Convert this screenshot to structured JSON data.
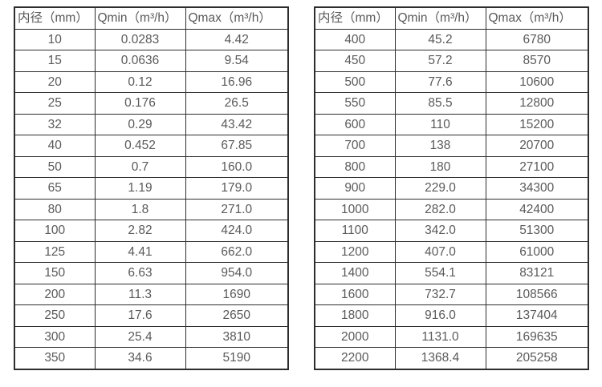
{
  "page": {
    "background_color": "#ffffff",
    "border_color": "#2d2d2d",
    "text_color": "#5a5a5a"
  },
  "tables": [
    {
      "name": "flow-range-table-small-diameters",
      "headers": [
        "内径（mm）",
        "Qmin（m³/h）",
        "Qmax（m³/h）"
      ],
      "rows": [
        [
          "10",
          "0.0283",
          "4.42"
        ],
        [
          "15",
          "0.0636",
          "9.54"
        ],
        [
          "20",
          "0.12",
          "16.96"
        ],
        [
          "25",
          "0.176",
          "26.5"
        ],
        [
          "32",
          "0.29",
          "43.42"
        ],
        [
          "40",
          "0.452",
          "67.85"
        ],
        [
          "50",
          "0.7",
          "160.0"
        ],
        [
          "65",
          "1.19",
          "179.0"
        ],
        [
          "80",
          "1.8",
          "271.0"
        ],
        [
          "100",
          "2.82",
          "424.0"
        ],
        [
          "125",
          "4.41",
          "662.0"
        ],
        [
          "150",
          "6.63",
          "954.0"
        ],
        [
          "200",
          "11.3",
          "1690"
        ],
        [
          "250",
          "17.6",
          "2650"
        ],
        [
          "300",
          "25.4",
          "3810"
        ],
        [
          "350",
          "34.6",
          "5190"
        ]
      ]
    },
    {
      "name": "flow-range-table-large-diameters",
      "headers": [
        "内径（mm）",
        "Qmin（m³/h）",
        "Qmax（m³/h）"
      ],
      "rows": [
        [
          "400",
          "45.2",
          "6780"
        ],
        [
          "450",
          "57.2",
          "8570"
        ],
        [
          "500",
          "77.6",
          "10600"
        ],
        [
          "550",
          "85.5",
          "12800"
        ],
        [
          "600",
          "110",
          "15200"
        ],
        [
          "700",
          "138",
          "20700"
        ],
        [
          "800",
          "180",
          "27100"
        ],
        [
          "900",
          "229.0",
          "34300"
        ],
        [
          "1000",
          "282.0",
          "42400"
        ],
        [
          "1100",
          "342.0",
          "51300"
        ],
        [
          "1200",
          "407.0",
          "61000"
        ],
        [
          "1400",
          "554.1",
          "83121"
        ],
        [
          "1600",
          "732.7",
          "108566"
        ],
        [
          "1800",
          "916.0",
          "137404"
        ],
        [
          "2000",
          "1131.0",
          "169635"
        ],
        [
          "2200",
          "1368.4",
          "205258"
        ]
      ]
    }
  ]
}
